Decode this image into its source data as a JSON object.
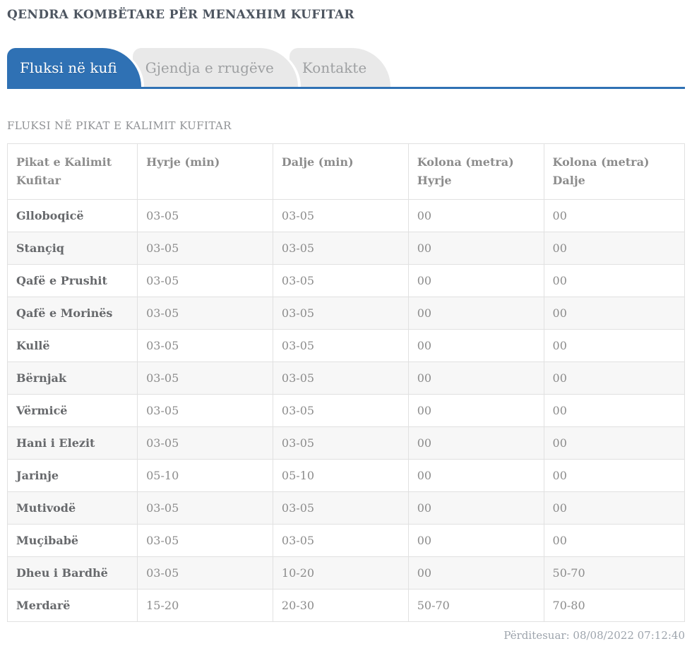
{
  "page": {
    "title": "QENDRA KOMBËTARE PËR MENAXHIM KUFITAR",
    "section_title": "FLUKSI NË PIKAT E KALIMIT KUFITAR",
    "updated": "Përditesuar: 08/08/2022 07:12:40"
  },
  "tabs": [
    {
      "label": "Fluksi në kufi",
      "active": true
    },
    {
      "label": "Gjendja e rrugëve",
      "active": false
    },
    {
      "label": "Kontakte",
      "active": false
    }
  ],
  "colors": {
    "accent_blue": "#2f71b4",
    "inactive_tab_bg": "#e9e9e9",
    "alt_row_bg": "#f7f7f7",
    "border": "#e1e1e1",
    "title_text": "#4d5560",
    "muted_text": "#8c8c8c"
  },
  "table": {
    "columns": [
      "Pikat e Kalimit\nKufitar",
      "Hyrje (min)",
      "Dalje (min)",
      "Kolona (metra)\nHyrje",
      "Kolona (metra)\nDalje"
    ],
    "rows": [
      [
        "Glloboqicë",
        "03-05",
        "03-05",
        "00",
        "00"
      ],
      [
        "Stançiq",
        "03-05",
        "03-05",
        "00",
        "00"
      ],
      [
        "Qafë e Prushit",
        "03-05",
        "03-05",
        "00",
        "00"
      ],
      [
        "Qafë e Morinës",
        "03-05",
        "03-05",
        "00",
        "00"
      ],
      [
        "Kullë",
        "03-05",
        "03-05",
        "00",
        "00"
      ],
      [
        "Bërnjak",
        "03-05",
        "03-05",
        "00",
        "00"
      ],
      [
        "Vërmicë",
        "03-05",
        "03-05",
        "00",
        "00"
      ],
      [
        "Hani i Elezit",
        "03-05",
        "03-05",
        "00",
        "00"
      ],
      [
        "Jarinje",
        "05-10",
        "05-10",
        "00",
        "00"
      ],
      [
        "Mutivodë",
        "03-05",
        "03-05",
        "00",
        "00"
      ],
      [
        "Muçibabë",
        "03-05",
        "03-05",
        "00",
        "00"
      ],
      [
        "Dheu i Bardhë",
        "03-05",
        "10-20",
        "00",
        "50-70"
      ],
      [
        "Merdarë",
        "15-20",
        "20-30",
        "50-70",
        "70-80"
      ]
    ]
  }
}
